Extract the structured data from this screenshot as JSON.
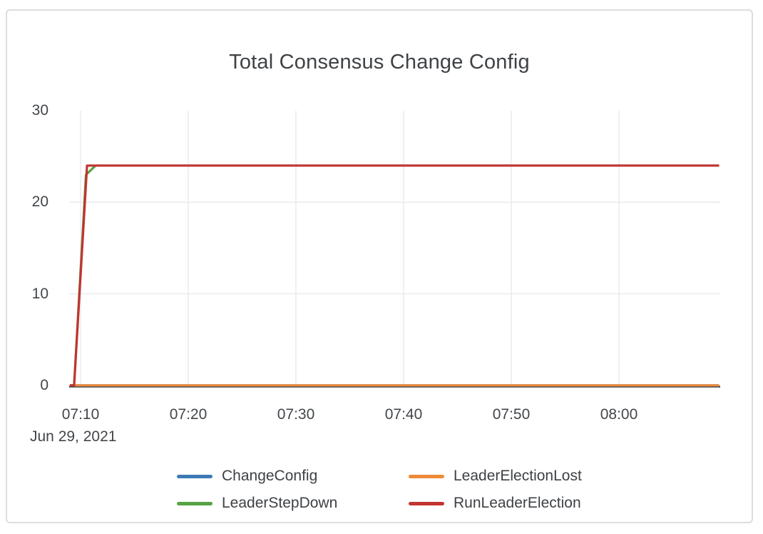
{
  "card": {
    "background": "#ffffff",
    "border_color": "#dcdde0"
  },
  "chart_data": {
    "type": "line",
    "title": "Total Consensus Change Config",
    "x_axis": {
      "date_label": "Jun 29, 2021",
      "tick_labels": [
        "07:10",
        "07:20",
        "07:30",
        "07:40",
        "07:50",
        "08:00"
      ],
      "tick_minutes": [
        10,
        20,
        30,
        40,
        50,
        60
      ],
      "range_minutes": [
        9,
        69.3
      ],
      "unit": "time of day (HH:MM), minutes measured after 07:00"
    },
    "y_axis": {
      "tick_labels": [
        "0",
        "10",
        "20",
        "30"
      ],
      "tick_values": [
        0,
        10,
        20,
        30
      ],
      "gridline_values": [
        10,
        20
      ],
      "range": [
        0,
        30
      ]
    },
    "series": [
      {
        "name": "ChangeConfig",
        "color": "#3d7ab5",
        "points": [
          [
            9,
            0
          ],
          [
            69.3,
            0
          ]
        ]
      },
      {
        "name": "LeaderElectionLost",
        "color": "#ee8a38",
        "points": [
          [
            9,
            0
          ],
          [
            69.3,
            0
          ]
        ]
      },
      {
        "name": "LeaderStepDown",
        "color": "#56a344",
        "points": [
          [
            9,
            0
          ],
          [
            9.4,
            0
          ],
          [
            10.5,
            23
          ],
          [
            11.4,
            24
          ],
          [
            69.3,
            24
          ]
        ]
      },
      {
        "name": "RunLeaderElection",
        "color": "#c23431",
        "points": [
          [
            9,
            0
          ],
          [
            9.4,
            0
          ],
          [
            10.6,
            24
          ],
          [
            69.3,
            24
          ]
        ]
      }
    ],
    "legend": {
      "position": "bottom",
      "items": [
        {
          "label": "ChangeConfig",
          "color": "#3d7ab5"
        },
        {
          "label": "LeaderElectionLost",
          "color": "#ee8a38"
        },
        {
          "label": "LeaderStepDown",
          "color": "#56a344"
        },
        {
          "label": "RunLeaderElection",
          "color": "#c23431"
        }
      ]
    },
    "grid": true,
    "gridline_color": "#e9eaec",
    "zero_line_color": "#3c3e40",
    "text_color": "#43464a"
  }
}
